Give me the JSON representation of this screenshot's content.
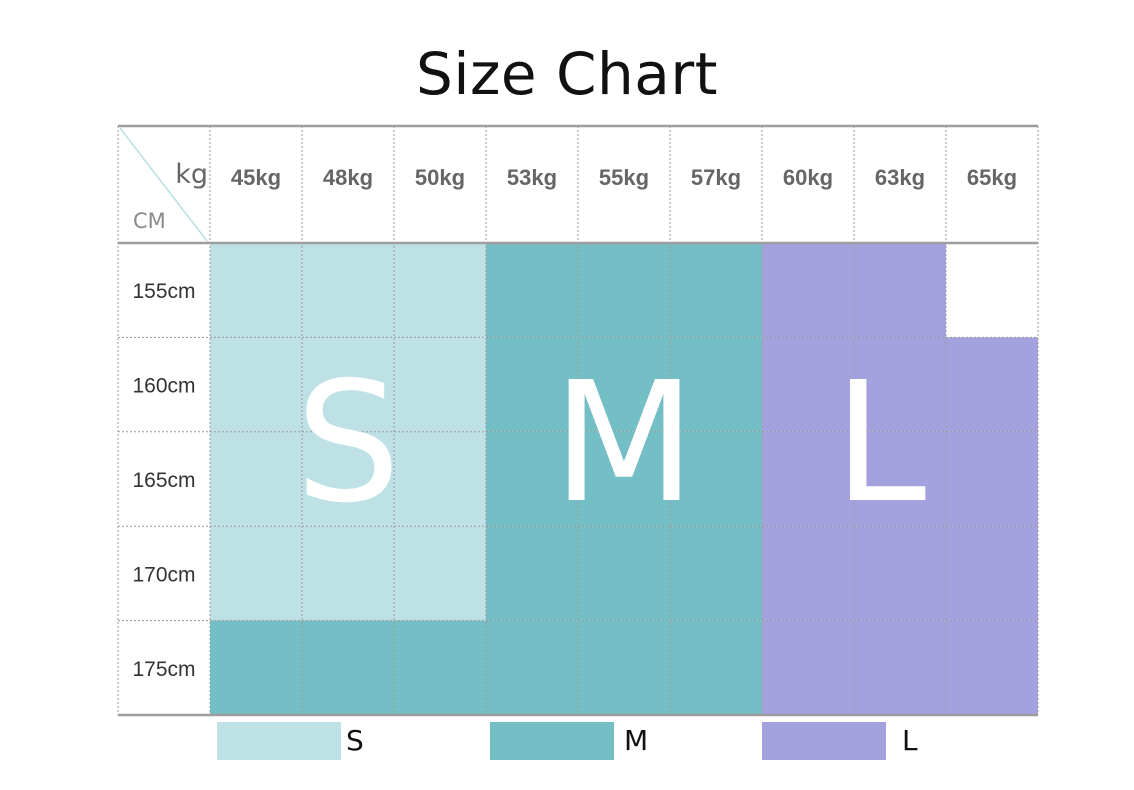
{
  "title": "Size Chart",
  "chart_data": {
    "type": "table",
    "corner": {
      "col_unit": "kg",
      "row_unit": "CM"
    },
    "columns": [
      "45kg",
      "48kg",
      "50kg",
      "53kg",
      "55kg",
      "57kg",
      "60kg",
      "63kg",
      "65kg"
    ],
    "rows": [
      "155cm",
      "160cm",
      "165cm",
      "170cm",
      "175cm"
    ],
    "cells": [
      [
        "S",
        "S",
        "S",
        "M",
        "M",
        "M",
        "L",
        "L",
        ""
      ],
      [
        "S",
        "S",
        "S",
        "M",
        "M",
        "M",
        "L",
        "L",
        "L"
      ],
      [
        "S",
        "S",
        "S",
        "M",
        "M",
        "M",
        "L",
        "L",
        "L"
      ],
      [
        "S",
        "S",
        "S",
        "M",
        "M",
        "M",
        "L",
        "L",
        "L"
      ],
      [
        "M",
        "M",
        "M",
        "M",
        "M",
        "M",
        "L",
        "L",
        "L"
      ]
    ],
    "region_labels": [
      "S",
      "M",
      "L"
    ],
    "legend": [
      {
        "label": "S",
        "color": "#bde1e4"
      },
      {
        "label": "M",
        "color": "#74bfc5"
      },
      {
        "label": "L",
        "color": "#a4a1df"
      }
    ]
  }
}
